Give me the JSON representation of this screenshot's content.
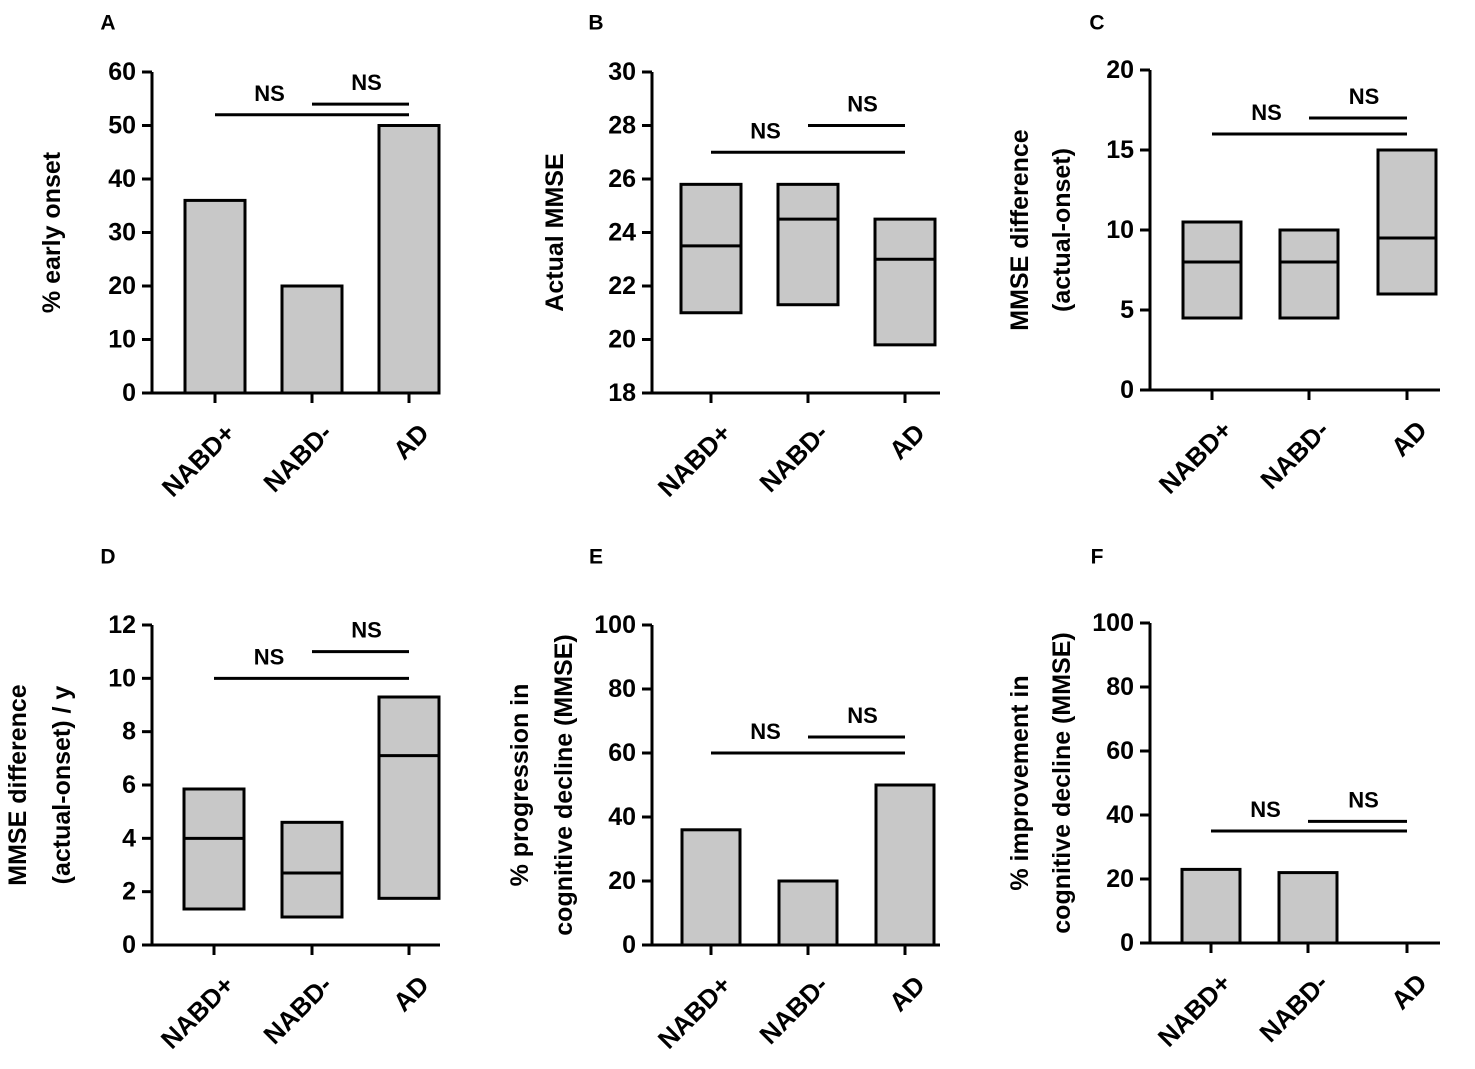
{
  "chart_data": [
    {
      "panel": "A",
      "type": "bar",
      "ylabel": [
        "% early onset"
      ],
      "categories": [
        "NABD+",
        "NABD-",
        "AD"
      ],
      "values": [
        36,
        20,
        50
      ],
      "ylim": [
        0,
        60
      ],
      "yticks": [
        "0",
        "10",
        "20",
        "30",
        "40",
        "50",
        "60"
      ],
      "ytick_values": [
        0,
        10,
        20,
        30,
        40,
        50,
        60
      ],
      "comparisons": [
        {
          "from": 0,
          "to": 2,
          "y": 52,
          "label": "NS"
        },
        {
          "from": 1,
          "to": 2,
          "y": 54,
          "label": "NS"
        }
      ]
    },
    {
      "panel": "B",
      "type": "box",
      "ylabel": [
        "Actual MMSE"
      ],
      "categories": [
        "NABD+",
        "NABD-",
        "AD"
      ],
      "boxes": [
        {
          "low": 21.0,
          "median": 23.5,
          "high": 25.8
        },
        {
          "low": 21.3,
          "median": 24.5,
          "high": 25.8
        },
        {
          "low": 19.8,
          "median": 23.0,
          "high": 24.5
        }
      ],
      "ylim": [
        18,
        30
      ],
      "yticks": [
        "18",
        "20",
        "22",
        "24",
        "26",
        "28",
        "30"
      ],
      "ytick_values": [
        18,
        20,
        22,
        24,
        26,
        28,
        30
      ],
      "comparisons": [
        {
          "from": 0,
          "to": 2,
          "y": 27,
          "label": "NS"
        },
        {
          "from": 1,
          "to": 2,
          "y": 28,
          "label": "NS"
        }
      ]
    },
    {
      "panel": "C",
      "type": "box",
      "ylabel": [
        "MMSE difference",
        "(actual-onset)"
      ],
      "categories": [
        "NABD+",
        "NABD-",
        "AD"
      ],
      "boxes": [
        {
          "low": 4.5,
          "median": 8.0,
          "high": 10.5
        },
        {
          "low": 4.5,
          "median": 8.0,
          "high": 10.0
        },
        {
          "low": 6.0,
          "median": 9.5,
          "high": 15.0
        }
      ],
      "ylim": [
        0,
        20
      ],
      "yticks": [
        "0",
        "5",
        "10",
        "15",
        "20"
      ],
      "ytick_values": [
        0,
        5,
        10,
        15,
        20
      ],
      "comparisons": [
        {
          "from": 0,
          "to": 2,
          "y": 16,
          "label": "NS"
        },
        {
          "from": 1,
          "to": 2,
          "y": 17,
          "label": "NS"
        }
      ]
    },
    {
      "panel": "D",
      "type": "box",
      "ylabel": [
        "MMSE difference",
        "(actual-onset) / y"
      ],
      "categories": [
        "NABD+",
        "NABD-",
        "AD"
      ],
      "boxes": [
        {
          "low": 1.35,
          "median": 4.0,
          "high": 5.85
        },
        {
          "low": 1.05,
          "median": 2.7,
          "high": 4.6
        },
        {
          "low": 1.75,
          "median": 7.1,
          "high": 9.3
        }
      ],
      "ylim": [
        0,
        12
      ],
      "yticks": [
        "0",
        "2",
        "4",
        "6",
        "8",
        "10",
        "12"
      ],
      "ytick_values": [
        0,
        2,
        4,
        6,
        8,
        10,
        12
      ],
      "comparisons": [
        {
          "from": 0,
          "to": 2,
          "y": 10,
          "label": "NS"
        },
        {
          "from": 1,
          "to": 2,
          "y": 11,
          "label": "NS"
        }
      ]
    },
    {
      "panel": "E",
      "type": "bar",
      "ylabel": [
        "% progression in",
        "cognitive decline (MMSE)"
      ],
      "categories": [
        "NABD+",
        "NABD-",
        "AD"
      ],
      "values": [
        36,
        20,
        50
      ],
      "ylim": [
        0,
        100
      ],
      "yticks": [
        "0",
        "20",
        "40",
        "60",
        "80",
        "100"
      ],
      "ytick_values": [
        0,
        20,
        40,
        60,
        80,
        100
      ],
      "comparisons": [
        {
          "from": 0,
          "to": 2,
          "y": 60,
          "label": "NS"
        },
        {
          "from": 1,
          "to": 2,
          "y": 65,
          "label": "NS"
        }
      ]
    },
    {
      "panel": "F",
      "type": "bar",
      "ylabel": [
        "% improvement in",
        "cognitive decline (MMSE)"
      ],
      "categories": [
        "NABD+",
        "NABD-",
        "AD"
      ],
      "values": [
        23,
        22,
        0
      ],
      "ylim": [
        0,
        100
      ],
      "yticks": [
        "0",
        "20",
        "40",
        "60",
        "80",
        "100"
      ],
      "ytick_values": [
        0,
        20,
        40,
        60,
        80,
        100
      ],
      "comparisons": [
        {
          "from": 0,
          "to": 2,
          "y": 35,
          "label": "NS"
        },
        {
          "from": 1,
          "to": 2,
          "y": 38,
          "label": "NS"
        }
      ]
    }
  ],
  "colors": {
    "fill": "#c8c8c8",
    "stroke": "#000000"
  }
}
